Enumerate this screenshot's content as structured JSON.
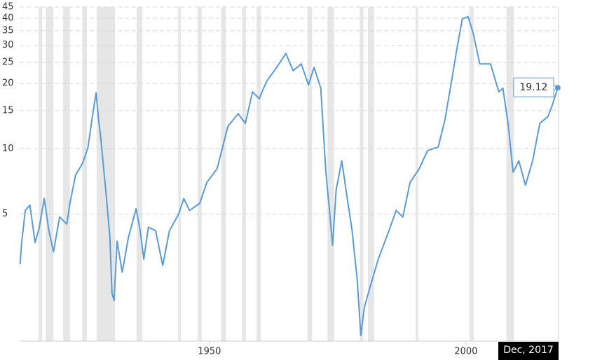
{
  "chart_data": {
    "type": "line",
    "log_scale": true,
    "grid": true,
    "ylim": [
      1.3,
      45
    ],
    "yticks": [
      5,
      10,
      15,
      20,
      25,
      30,
      35,
      40,
      45
    ],
    "xlim": [
      1913,
      2018.05
    ],
    "xticks": [
      1950,
      2000
    ],
    "recessions": [
      [
        1916.7,
        1917.4
      ],
      [
        1918.1,
        1919.6
      ],
      [
        1921.5,
        1922.8
      ],
      [
        1925.2,
        1926.1
      ],
      [
        1928.0,
        1931.6
      ],
      [
        1935.8,
        1936.9
      ],
      [
        1943.9,
        1944.4
      ],
      [
        1947.7,
        1948.5
      ],
      [
        1952.3,
        1953.2
      ],
      [
        1956.4,
        1957.1
      ],
      [
        1959.2,
        1960.0
      ],
      [
        1969.1,
        1970.0
      ],
      [
        1973.0,
        1974.3
      ],
      [
        1979.3,
        1980.0
      ],
      [
        1980.9,
        1982.1
      ],
      [
        1990.2,
        1990.7
      ],
      [
        2000.7,
        2001.5
      ],
      [
        2007.9,
        2009.3
      ]
    ],
    "recession_color": "#e6e6e6",
    "tooltip_date": "Dec, 2017",
    "series": [
      {
        "color": "#5b9bd5",
        "x": [
          1913.1,
          1913.4,
          1914.1,
          1915,
          1915.4,
          1916,
          1916.8,
          1917.8,
          1918.7,
          1919.6,
          1920.8,
          1922.2,
          1922.8,
          1923.9,
          1925.3,
          1926.3,
          1927.2,
          1927.9,
          1928.4,
          1928.8,
          1929.9,
          1930.6,
          1931,
          1931.4,
          1932,
          1933,
          1934.2,
          1935.7,
          1936.5,
          1937.2,
          1938.1,
          1939.5,
          1940.9,
          1942.2,
          1944,
          1945,
          1946.1,
          1948.1,
          1949.5,
          1951.5,
          1953.6,
          1955.6,
          1957,
          1958.4,
          1959.7,
          1961.1,
          1963.1,
          1964.9,
          1966.3,
          1967.9,
          1969.3,
          1970.4,
          1971.7,
          1972.7,
          1973.4,
          1974,
          1974.7,
          1975.8,
          1976.8,
          1977.8,
          1978.8,
          1979.5,
          1980.2,
          1981.3,
          1982.9,
          1985,
          1986.4,
          1987.7,
          1989.1,
          1990.9,
          1992.5,
          1994.6,
          1995.9,
          1997.3,
          1998.2,
          1999.3,
          2000.4,
          2001.4,
          2002.7,
          2004.8,
          2006.4,
          2007.2,
          2008.2,
          2009.2,
          2010.3,
          2011.6,
          2013,
          2014.4,
          2016,
          2016.8,
          2017.9
        ],
        "values": [
          2.94,
          3.7,
          5.2,
          5.5,
          4.7,
          3.7,
          4.3,
          5.9,
          4.2,
          3.35,
          4.85,
          4.5,
          5.6,
          7.55,
          8.6,
          10.1,
          14.1,
          18.1,
          13.6,
          11.3,
          6.05,
          3.9,
          2.16,
          2.0,
          3.75,
          2.7,
          3.9,
          5.3,
          4.2,
          3.1,
          4.35,
          4.2,
          2.9,
          4.2,
          5.0,
          5.9,
          5.2,
          5.6,
          7.0,
          8.1,
          12.7,
          14.5,
          13.1,
          18.3,
          17,
          20.4,
          23.7,
          27.5,
          22.9,
          24.6,
          19.7,
          23.7,
          19,
          7.8,
          5.2,
          3.6,
          6.5,
          8.8,
          6.05,
          4.2,
          2.5,
          1.38,
          1.86,
          2.3,
          3.1,
          4.2,
          5.2,
          4.85,
          7.0,
          8.1,
          9.8,
          10.2,
          13.6,
          21.2,
          28.6,
          39.7,
          40.6,
          34.2,
          24.6,
          24.6,
          18.3,
          19,
          13.1,
          7.8,
          8.8,
          6.8,
          8.8,
          13.1,
          14.1,
          15.8,
          19.12
        ]
      }
    ]
  }
}
